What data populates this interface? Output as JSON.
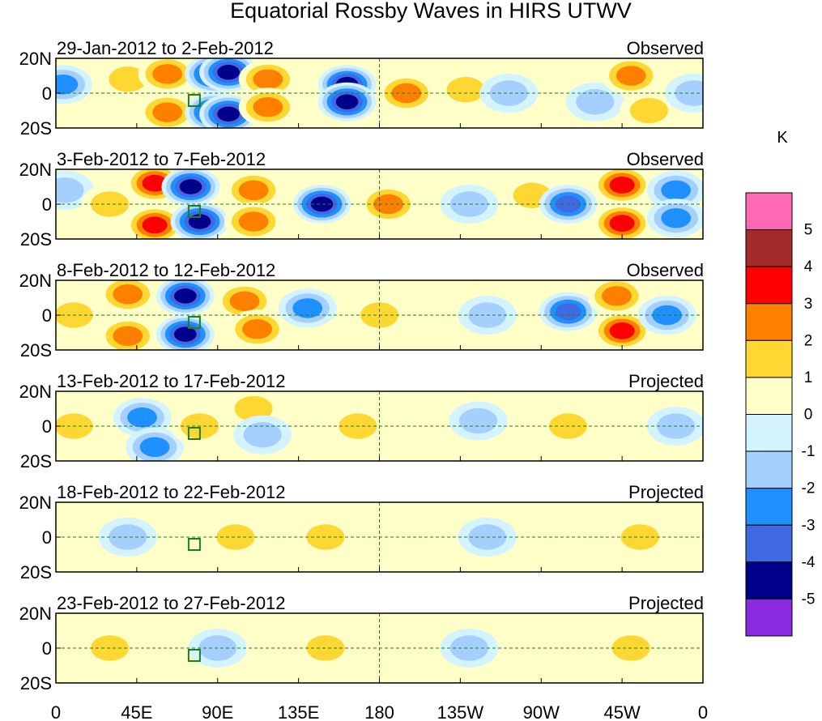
{
  "chart_data": {
    "type": "heatmap",
    "title": "Equatorial Rossby Waves in HIRS UTWV",
    "units": "K",
    "x_ticks": [
      "0",
      "45E",
      "90E",
      "135E",
      "180",
      "135W",
      "90W",
      "45W",
      "0"
    ],
    "y_ticks": [
      "20N",
      "0",
      "20S"
    ],
    "xlim": [
      0,
      360
    ],
    "ylim": [
      -20,
      20
    ],
    "colorbar": {
      "levels": [
        "5",
        "4",
        "3",
        "2",
        "1",
        "0",
        "-1",
        "-2",
        "-3",
        "-4",
        "-5"
      ],
      "colors": [
        "#ff69b4",
        "#a52a2a",
        "#ff0000",
        "#ff7f00",
        "#ffd733",
        "#ffffc8",
        "#d3f3ff",
        "#a5cfff",
        "#1e90ff",
        "#4169e1",
        "#00008b",
        "#8a2be2"
      ]
    },
    "panels": [
      {
        "date_range": "29-Jan-2012 to 2-Feb-2012",
        "status": "Observed",
        "anomalies": [
          {
            "lon": 4,
            "lat": 5,
            "value": -2.2
          },
          {
            "lon": 40,
            "lat": 8,
            "value": 1.2
          },
          {
            "lon": 62,
            "lat": 11,
            "value": 2.6
          },
          {
            "lon": 62,
            "lat": -11,
            "value": 2.6
          },
          {
            "lon": 88,
            "lat": 11,
            "value": -4.3
          },
          {
            "lon": 88,
            "lat": -11,
            "value": -4.3
          },
          {
            "lon": 96,
            "lat": 12,
            "value": -5.0
          },
          {
            "lon": 96,
            "lat": -12,
            "value": -5.0
          },
          {
            "lon": 118,
            "lat": 8,
            "value": 2.2
          },
          {
            "lon": 118,
            "lat": -8,
            "value": 2.2
          },
          {
            "lon": 162,
            "lat": 5,
            "value": -4.3
          },
          {
            "lon": 162,
            "lat": -5,
            "value": -4.3
          },
          {
            "lon": 195,
            "lat": 0,
            "value": 2.3
          },
          {
            "lon": 228,
            "lat": 2,
            "value": 1.3
          },
          {
            "lon": 252,
            "lat": 0,
            "value": -1.3
          },
          {
            "lon": 300,
            "lat": -5,
            "value": -1.4
          },
          {
            "lon": 320,
            "lat": 10,
            "value": 2.1
          },
          {
            "lon": 330,
            "lat": -10,
            "value": 1.9
          },
          {
            "lon": 355,
            "lat": 0,
            "value": -1.2
          }
        ]
      },
      {
        "date_range": "3-Feb-2012 to 7-Feb-2012",
        "status": "Observed",
        "anomalies": [
          {
            "lon": 5,
            "lat": 8,
            "value": -1.3
          },
          {
            "lon": 30,
            "lat": 0,
            "value": 1.3
          },
          {
            "lon": 55,
            "lat": 12,
            "value": 3.2
          },
          {
            "lon": 55,
            "lat": -12,
            "value": 3.2
          },
          {
            "lon": 75,
            "lat": 10,
            "value": -4.3
          },
          {
            "lon": 80,
            "lat": -10,
            "value": -5.0
          },
          {
            "lon": 110,
            "lat": 8,
            "value": 2.2
          },
          {
            "lon": 110,
            "lat": -10,
            "value": 2.5
          },
          {
            "lon": 148,
            "lat": 0,
            "value": -4.4
          },
          {
            "lon": 185,
            "lat": 0,
            "value": 2.2
          },
          {
            "lon": 230,
            "lat": 0,
            "value": -1.3
          },
          {
            "lon": 265,
            "lat": 5,
            "value": 1.3
          },
          {
            "lon": 285,
            "lat": 0,
            "value": -3.3
          },
          {
            "lon": 315,
            "lat": 11,
            "value": 3.3
          },
          {
            "lon": 315,
            "lat": -11,
            "value": 3.3
          },
          {
            "lon": 345,
            "lat": 8,
            "value": -2.3
          },
          {
            "lon": 345,
            "lat": -8,
            "value": -2.3
          }
        ]
      },
      {
        "date_range": "8-Feb-2012 to 12-Feb-2012",
        "status": "Observed",
        "anomalies": [
          {
            "lon": 10,
            "lat": 0,
            "value": 1.2
          },
          {
            "lon": 40,
            "lat": 12,
            "value": 2.4
          },
          {
            "lon": 40,
            "lat": -12,
            "value": 2.4
          },
          {
            "lon": 72,
            "lat": 11,
            "value": -4.3
          },
          {
            "lon": 72,
            "lat": -11,
            "value": -4.3
          },
          {
            "lon": 105,
            "lat": 8,
            "value": 2.5
          },
          {
            "lon": 112,
            "lat": -8,
            "value": 2.5
          },
          {
            "lon": 140,
            "lat": 4,
            "value": -2.3
          },
          {
            "lon": 180,
            "lat": 0,
            "value": 1.5
          },
          {
            "lon": 240,
            "lat": 0,
            "value": -1.2
          },
          {
            "lon": 285,
            "lat": 2,
            "value": -3.3
          },
          {
            "lon": 312,
            "lat": 11,
            "value": 2.5
          },
          {
            "lon": 315,
            "lat": -9,
            "value": 3.2
          },
          {
            "lon": 340,
            "lat": 0,
            "value": -2.2
          }
        ]
      },
      {
        "date_range": "13-Feb-2012 to 17-Feb-2012",
        "status": "Projected",
        "anomalies": [
          {
            "lon": 10,
            "lat": 0,
            "value": 1.2
          },
          {
            "lon": 48,
            "lat": 5,
            "value": -2.3
          },
          {
            "lon": 55,
            "lat": -12,
            "value": -2.2
          },
          {
            "lon": 80,
            "lat": 0,
            "value": 1.2
          },
          {
            "lon": 110,
            "lat": 10,
            "value": 1.3
          },
          {
            "lon": 115,
            "lat": -5,
            "value": -1.4
          },
          {
            "lon": 168,
            "lat": 0,
            "value": 1.4
          },
          {
            "lon": 235,
            "lat": 3,
            "value": -1.2
          },
          {
            "lon": 285,
            "lat": 0,
            "value": 1.2
          },
          {
            "lon": 345,
            "lat": 0,
            "value": -1.2
          }
        ]
      },
      {
        "date_range": "18-Feb-2012 to 22-Feb-2012",
        "status": "Projected",
        "anomalies": [
          {
            "lon": 40,
            "lat": 0,
            "value": -1.2
          },
          {
            "lon": 100,
            "lat": 0,
            "value": 1.1
          },
          {
            "lon": 150,
            "lat": 0,
            "value": 1.5
          },
          {
            "lon": 240,
            "lat": 0,
            "value": -1.2
          },
          {
            "lon": 325,
            "lat": 0,
            "value": 1.1
          }
        ]
      },
      {
        "date_range": "23-Feb-2012 to 27-Feb-2012",
        "status": "Projected",
        "anomalies": [
          {
            "lon": 30,
            "lat": 0,
            "value": 1.1
          },
          {
            "lon": 90,
            "lat": 0,
            "value": -1.1
          },
          {
            "lon": 150,
            "lat": 0,
            "value": 1.1
          },
          {
            "lon": 230,
            "lat": 0,
            "value": -1.1
          },
          {
            "lon": 320,
            "lat": 0,
            "value": 1.1
          }
        ]
      }
    ]
  }
}
